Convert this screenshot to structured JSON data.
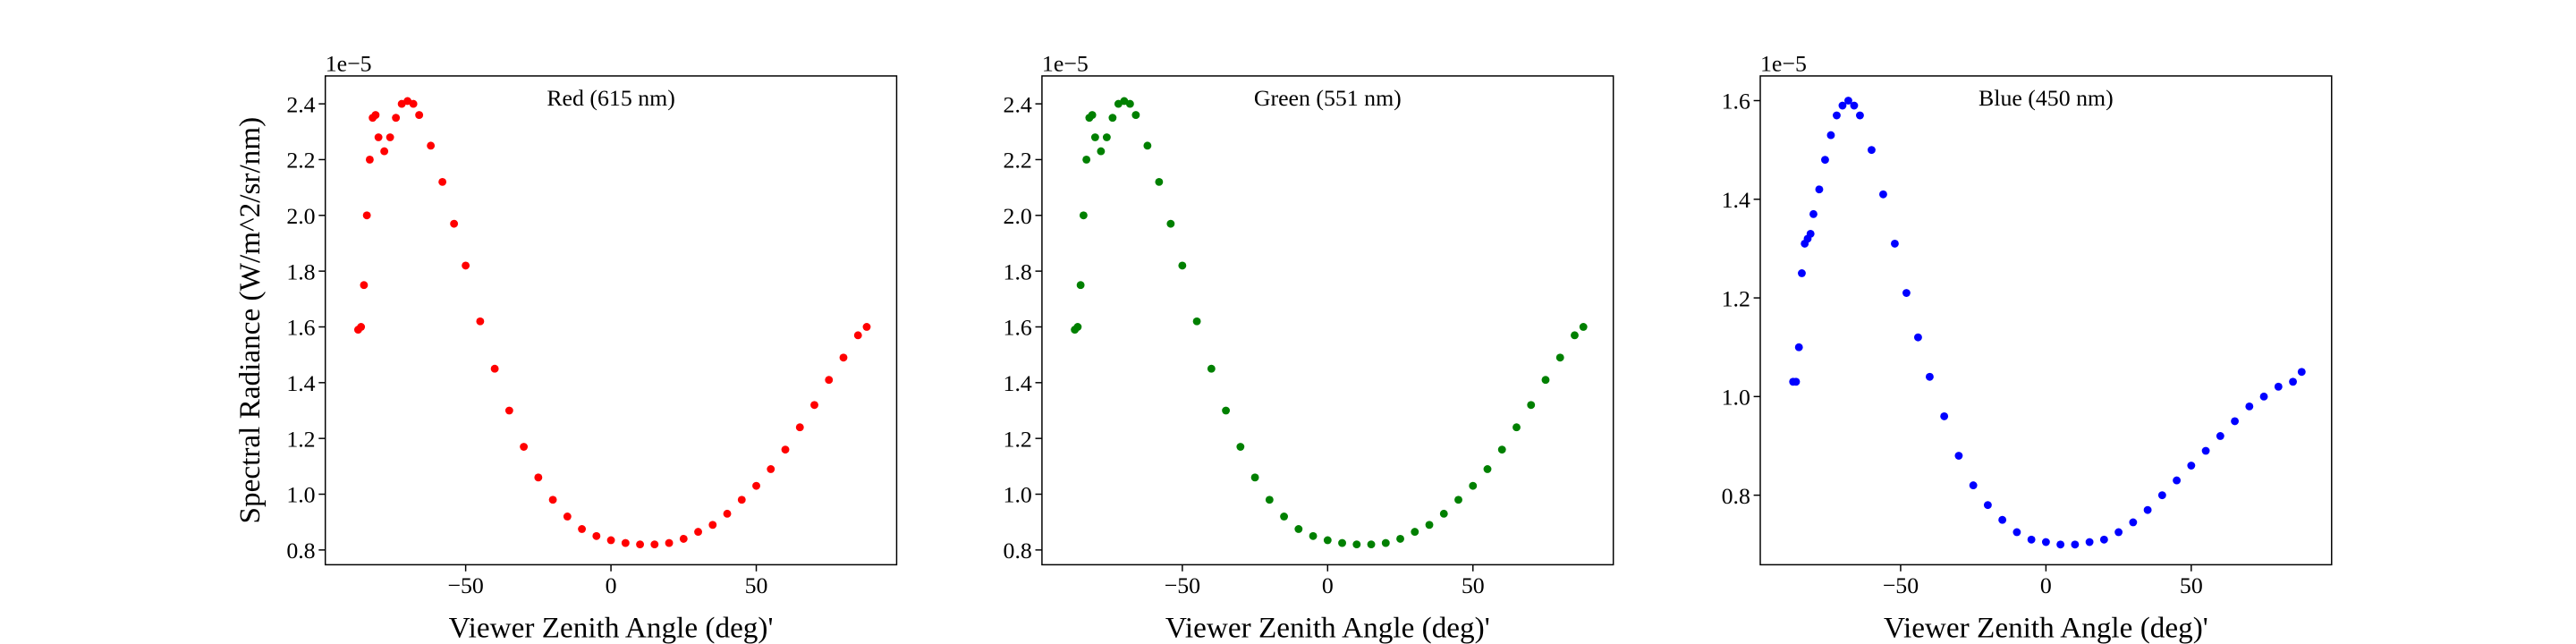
{
  "chart_data": [
    {
      "type": "scatter",
      "title": "Red (615 nm)",
      "xlabel": "Viewer Zenith Angle (deg)'",
      "ylabel": "Spectral Radiance (W/m^2/sr/nm)",
      "offset_label": "1e−5",
      "color": "#ff0000",
      "x": [
        -87,
        -86,
        -85,
        -84,
        -83,
        -82,
        -81,
        -80,
        -78,
        -76,
        -74,
        -72,
        -70,
        -68,
        -66,
        -62,
        -58,
        -54,
        -50,
        -45,
        -40,
        -35,
        -30,
        -25,
        -20,
        -15,
        -10,
        -5,
        0,
        5,
        10,
        15,
        20,
        25,
        30,
        35,
        40,
        45,
        50,
        55,
        60,
        65,
        70,
        75,
        80,
        85,
        88
      ],
      "values": [
        1.59,
        1.6,
        1.75,
        2.0,
        2.2,
        2.35,
        2.36,
        2.28,
        2.23,
        2.28,
        2.35,
        2.4,
        2.41,
        2.4,
        2.36,
        2.25,
        2.12,
        1.97,
        1.82,
        1.62,
        1.45,
        1.3,
        1.17,
        1.06,
        0.98,
        0.92,
        0.875,
        0.85,
        0.835,
        0.825,
        0.82,
        0.82,
        0.825,
        0.84,
        0.865,
        0.89,
        0.93,
        0.98,
        1.03,
        1.09,
        1.16,
        1.24,
        1.32,
        1.41,
        1.49,
        1.57,
        1.6
      ],
      "xlim": [
        -98.3,
        98.3
      ],
      "ylim": [
        0.747,
        2.5
      ],
      "xticks": [
        {
          "value": -50,
          "label": "−50"
        },
        0,
        50
      ],
      "yticks": [
        0.8,
        {
          "value": 1.0,
          "label": "1.0"
        },
        1.2,
        1.4,
        1.6,
        1.8,
        {
          "value": 2.0,
          "label": "2.0"
        },
        2.2,
        2.4
      ]
    },
    {
      "type": "scatter",
      "title": "Green (551 nm)",
      "xlabel": "Viewer Zenith Angle (deg)'",
      "offset_label": "1e−5",
      "color": "#008000",
      "x": [
        -87,
        -86,
        -85,
        -84,
        -83,
        -82,
        -81,
        -80,
        -78,
        -76,
        -74,
        -72,
        -70,
        -68,
        -66,
        -62,
        -58,
        -54,
        -50,
        -45,
        -40,
        -35,
        -30,
        -25,
        -20,
        -15,
        -10,
        -5,
        0,
        5,
        10,
        15,
        20,
        25,
        30,
        35,
        40,
        45,
        50,
        55,
        60,
        65,
        70,
        75,
        80,
        85,
        88
      ],
      "values": [
        1.59,
        1.6,
        1.75,
        2.0,
        2.2,
        2.35,
        2.36,
        2.28,
        2.23,
        2.28,
        2.35,
        2.4,
        2.41,
        2.4,
        2.36,
        2.25,
        2.12,
        1.97,
        1.82,
        1.62,
        1.45,
        1.3,
        1.17,
        1.06,
        0.98,
        0.92,
        0.875,
        0.85,
        0.835,
        0.825,
        0.82,
        0.82,
        0.825,
        0.84,
        0.865,
        0.89,
        0.93,
        0.98,
        1.03,
        1.09,
        1.16,
        1.24,
        1.32,
        1.41,
        1.49,
        1.57,
        1.6
      ],
      "xlim": [
        -98.3,
        98.3
      ],
      "ylim": [
        0.747,
        2.5
      ],
      "xticks": [
        {
          "value": -50,
          "label": "−50"
        },
        0,
        50
      ],
      "yticks": [
        0.8,
        {
          "value": 1.0,
          "label": "1.0"
        },
        1.2,
        1.4,
        1.6,
        1.8,
        {
          "value": 2.0,
          "label": "2.0"
        },
        2.2,
        2.4
      ]
    },
    {
      "type": "scatter",
      "title": "Blue (450 nm)",
      "xlabel": "Viewer Zenith Angle (deg)'",
      "offset_label": "1e−5",
      "color": "#0000ff",
      "x": [
        -87,
        -86,
        -85,
        -84,
        -83,
        -82,
        -81,
        -80,
        -78,
        -76,
        -74,
        -72,
        -70,
        -68,
        -66,
        -64,
        -60,
        -56,
        -52,
        -48,
        -44,
        -40,
        -35,
        -30,
        -25,
        -20,
        -15,
        -10,
        -5,
        0,
        5,
        10,
        15,
        20,
        25,
        30,
        35,
        40,
        45,
        50,
        55,
        60,
        65,
        70,
        75,
        80,
        85,
        88
      ],
      "values": [
        1.03,
        1.03,
        1.1,
        1.25,
        1.31,
        1.32,
        1.33,
        1.37,
        1.42,
        1.48,
        1.53,
        1.57,
        1.59,
        1.6,
        1.59,
        1.57,
        1.5,
        1.41,
        1.31,
        1.21,
        1.12,
        1.04,
        0.96,
        0.88,
        0.82,
        0.78,
        0.75,
        0.725,
        0.71,
        0.705,
        0.7,
        0.7,
        0.705,
        0.71,
        0.725,
        0.745,
        0.77,
        0.8,
        0.83,
        0.86,
        0.89,
        0.92,
        0.95,
        0.98,
        1.0,
        1.02,
        1.03,
        1.05
      ],
      "xlim": [
        -98.3,
        98.3
      ],
      "ylim": [
        0.659,
        1.65
      ],
      "xticks": [
        {
          "value": -50,
          "label": "−50"
        },
        0,
        50
      ],
      "yticks": [
        0.8,
        {
          "value": 1.0,
          "label": "1.0"
        },
        1.2,
        1.4,
        1.6
      ]
    }
  ]
}
